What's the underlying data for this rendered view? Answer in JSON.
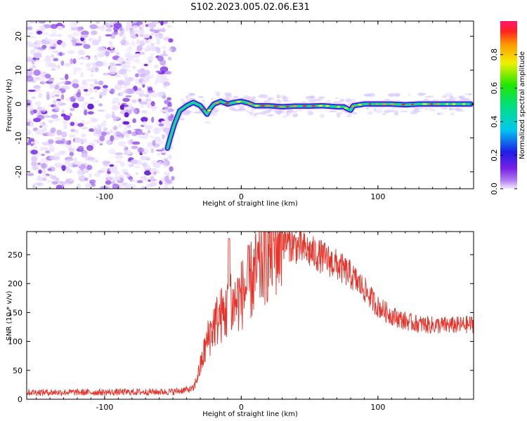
{
  "title": "S102.2023.005.02.06.E31",
  "chart_data": [
    {
      "type": "heatmap",
      "xlabel": "Height of straight line (km)",
      "ylabel": "Frequency (Hz)",
      "xlim": [
        -157,
        170
      ],
      "ylim": [
        -25,
        24.5
      ],
      "xticks": [
        -100,
        0,
        100
      ],
      "yticks": [
        -20,
        -10,
        0,
        10,
        20
      ],
      "ridge_line": {
        "x": [
          -54,
          -52,
          -49,
          -45,
          -40,
          -35,
          -30,
          -27,
          -25,
          -23,
          -20,
          -15,
          -10,
          -5,
          0,
          5,
          10,
          20,
          30,
          40,
          50,
          60,
          70,
          75,
          78,
          80,
          82,
          85,
          90,
          100,
          110,
          120,
          130,
          140,
          150,
          160,
          168
        ],
        "y": [
          -13,
          -10,
          -6,
          -2,
          -0.5,
          0.5,
          -0.5,
          -2,
          -3,
          -1.5,
          0,
          0.8,
          0,
          0.5,
          0.8,
          0.3,
          -0.5,
          -0.5,
          -0.8,
          -0.6,
          -0.6,
          -0.5,
          -0.8,
          -0.8,
          -1.5,
          -1.8,
          -0.5,
          -0.3,
          0,
          0,
          0,
          -0.2,
          0,
          0,
          0,
          0,
          0
        ]
      },
      "colorbar": {
        "label": "Normalized spectral amplitude",
        "range": [
          0,
          1
        ],
        "ticks": [
          "0.0",
          "0.2",
          "0.4",
          "0.6",
          "0.8"
        ]
      }
    },
    {
      "type": "line",
      "xlabel": "Height of straight line (km)",
      "ylabel": "SNR (10 * v/v)",
      "xlim": [
        -157,
        170
      ],
      "ylim": [
        0,
        290
      ],
      "xticks": [
        -100,
        0,
        100
      ],
      "yticks": [
        0,
        50,
        100,
        150,
        200,
        250
      ],
      "color": "#e8332a",
      "envelope": {
        "x": [
          -157,
          -100,
          -50,
          -35,
          -30,
          -25,
          -20,
          -15,
          -10,
          0,
          10,
          20,
          30,
          40,
          50,
          60,
          70,
          80,
          90,
          100,
          110,
          120,
          130,
          140,
          150,
          160,
          170
        ],
        "y": [
          12,
          12,
          13,
          18,
          55,
          100,
          130,
          145,
          150,
          180,
          215,
          255,
          275,
          265,
          255,
          245,
          232,
          215,
          190,
          160,
          145,
          135,
          130,
          128,
          128,
          128,
          130
        ]
      },
      "spike": {
        "x": -9,
        "y": 278
      }
    }
  ]
}
